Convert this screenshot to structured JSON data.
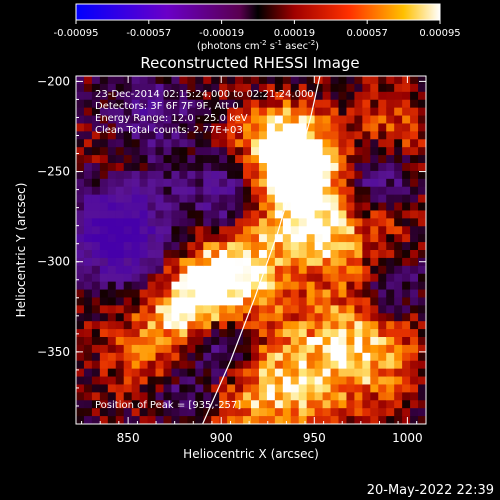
{
  "chart_data": {
    "type": "heatmap",
    "title": "Reconstructed RHESSI Image",
    "xlabel": "Heliocentric X (arcsec)",
    "ylabel": "Heliocentric Y (arcsec)",
    "xlim": [
      822,
      1010
    ],
    "ylim": [
      -390,
      -197
    ],
    "x_ticks": [
      850,
      900,
      950,
      1000
    ],
    "y_ticks": [
      -200,
      -250,
      -300,
      -350
    ],
    "colorbar": {
      "min": -0.00095,
      "max": 0.00095,
      "ticks": [
        "-0.00095",
        "-0.00057",
        "-0.00019",
        "0.00019",
        "0.00057",
        "0.00095"
      ],
      "ticks_values": [
        -0.00095,
        -0.00057,
        -0.00019,
        0.00019,
        0.00057,
        0.00095
      ],
      "units_main": "(photons cm",
      "units_exp1": "-2",
      "units_mid1": " s",
      "units_exp2": "-1",
      "units_mid2": " asec",
      "units_exp3": "-2",
      "units_end": ")"
    },
    "annotations": [
      "23-Dec-2014 02:15:24.000 to 02:21:24.000",
      "Detectors: 3F 6F 7F 9F, Att 0",
      "Energy Range: 12.0 - 25.0 keV",
      "Clean     Total counts: 2.77E+03"
    ],
    "peak_label": "Position of Peak = [935,-257]",
    "peak": [
      935,
      -257
    ],
    "limb_curve": [
      [
        890,
        -390
      ],
      [
        905,
        -355
      ],
      [
        918,
        -320
      ],
      [
        930,
        -285
      ],
      [
        940,
        -250
      ],
      [
        948,
        -220
      ],
      [
        953,
        -197
      ]
    ],
    "colors": {
      "limb": "#ffffff",
      "background": "#000000"
    }
  },
  "footer": {
    "timestamp": "20-May-2022 22:39"
  }
}
